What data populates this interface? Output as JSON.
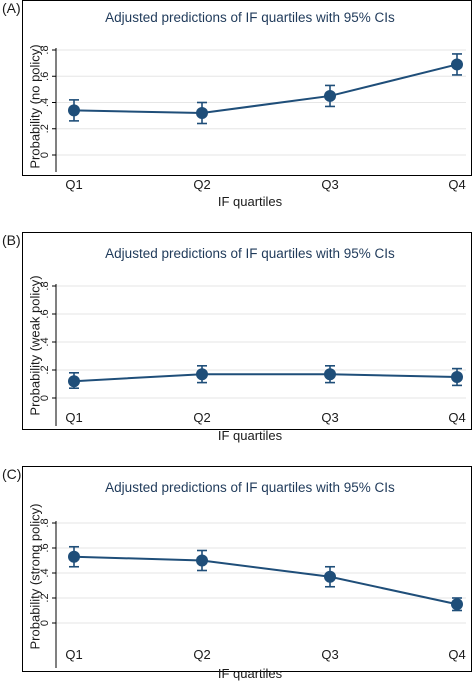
{
  "chart_data": [
    {
      "type": "line",
      "panel": "(A)",
      "title": "Adjusted predictions of IF quartiles with 95% CIs",
      "xlabel": "IF quartiles",
      "ylabel": "Probability (no policy)",
      "categories": [
        "Q1",
        "Q2",
        "Q3",
        "Q4"
      ],
      "values": [
        0.34,
        0.32,
        0.45,
        0.69
      ],
      "ci_lower": [
        0.26,
        0.24,
        0.37,
        0.61
      ],
      "ci_upper": [
        0.42,
        0.4,
        0.53,
        0.77
      ],
      "ylim": [
        0,
        0.8
      ],
      "yticks": [
        0,
        0.2,
        0.4,
        0.6,
        0.8
      ],
      "ytick_labels": [
        "0",
        ".2",
        ".4",
        ".6",
        ".8"
      ],
      "grid": "horizontal",
      "color": "#1f4e79"
    },
    {
      "type": "line",
      "panel": "(B)",
      "title": "Adjusted predictions of IF quartiles with 95% CIs",
      "xlabel": "IF quartiles",
      "ylabel": "Probability (weak policy)",
      "categories": [
        "Q1",
        "Q2",
        "Q3",
        "Q4"
      ],
      "values": [
        0.12,
        0.17,
        0.17,
        0.15
      ],
      "ci_lower": [
        0.07,
        0.11,
        0.11,
        0.09
      ],
      "ci_upper": [
        0.18,
        0.23,
        0.23,
        0.21
      ],
      "ylim": [
        0,
        0.8
      ],
      "yticks": [
        0,
        0.2,
        0.4,
        0.6,
        0.8
      ],
      "ytick_labels": [
        "0",
        ".2",
        ".4",
        ".6",
        ".8"
      ],
      "grid": "horizontal",
      "color": "#1f4e79"
    },
    {
      "type": "line",
      "panel": "(C)",
      "title": "Adjusted predictions of IF quartiles with 95% CIs",
      "xlabel": "IF quartiles",
      "ylabel": "Probability (strong policy)",
      "categories": [
        "Q1",
        "Q2",
        "Q3",
        "Q4"
      ],
      "values": [
        0.53,
        0.5,
        0.37,
        0.15
      ],
      "ci_lower": [
        0.45,
        0.42,
        0.29,
        0.1
      ],
      "ci_upper": [
        0.61,
        0.58,
        0.45,
        0.2
      ],
      "ylim": [
        0,
        0.8
      ],
      "yticks": [
        0,
        0.2,
        0.4,
        0.6,
        0.8
      ],
      "ytick_labels": [
        "0",
        ".2",
        ".4",
        ".6",
        ".8"
      ],
      "grid": "horizontal",
      "color": "#1f4e79"
    }
  ]
}
